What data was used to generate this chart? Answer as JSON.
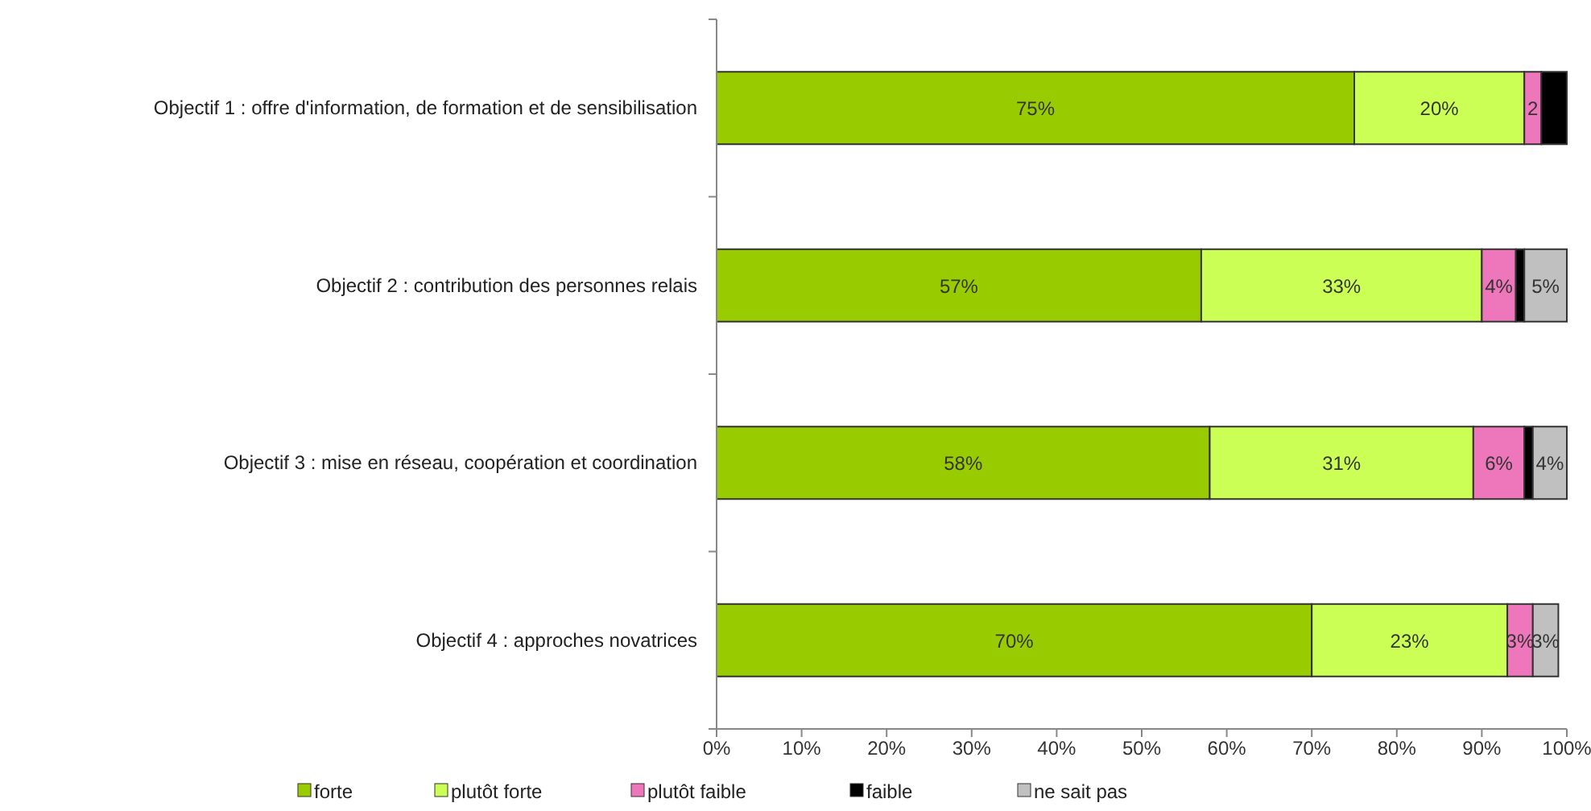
{
  "chart_data": {
    "type": "bar",
    "orientation": "horizontal",
    "stacked": true,
    "categories": [
      "Objectif 1 : offre d'information, de formation et de sensibilisation",
      "Objectif 2 : contribution des personnes relais",
      "Objectif 3 : mise en réseau, coopération et coordination",
      "Objectif 4 : approches novatrices"
    ],
    "series": [
      {
        "name": "forte",
        "color": "#99cc00",
        "values": [
          75,
          57,
          58,
          70
        ],
        "value_labels": [
          "75%",
          "57%",
          "58%",
          "70%"
        ]
      },
      {
        "name": "plutôt forte",
        "color": "#ccff55",
        "values": [
          20,
          33,
          31,
          23
        ],
        "value_labels": [
          "20%",
          "33%",
          "31%",
          "23%"
        ]
      },
      {
        "name": "plutôt faible",
        "color": "#ee77bb",
        "values": [
          2,
          4,
          6,
          3
        ],
        "value_labels": [
          "2",
          "4%",
          "6%",
          "3%"
        ]
      },
      {
        "name": "faible",
        "color": "#000000",
        "values": [
          3,
          1,
          1,
          null
        ],
        "value_labels": [
          null,
          null,
          null,
          null
        ]
      },
      {
        "name": "ne sait pas",
        "color": "#c0c0c0",
        "values": [
          null,
          5,
          4,
          3
        ],
        "value_labels": [
          null,
          "5%",
          "4%",
          "3%"
        ]
      }
    ],
    "xlim": [
      0,
      100
    ],
    "xticks": [
      {
        "value": 0,
        "label": "0%"
      },
      {
        "value": 10,
        "label": "10%"
      },
      {
        "value": 20,
        "label": "20%"
      },
      {
        "value": 30,
        "label": "30%"
      },
      {
        "value": 40,
        "label": "40%"
      },
      {
        "value": 50,
        "label": "50%"
      },
      {
        "value": 60,
        "label": "60%"
      },
      {
        "value": 70,
        "label": "70%"
      },
      {
        "value": 80,
        "label": "80%"
      },
      {
        "value": 90,
        "label": "90%"
      },
      {
        "value": 100,
        "label": "100%"
      }
    ],
    "grid": false,
    "legend": "bottom"
  }
}
